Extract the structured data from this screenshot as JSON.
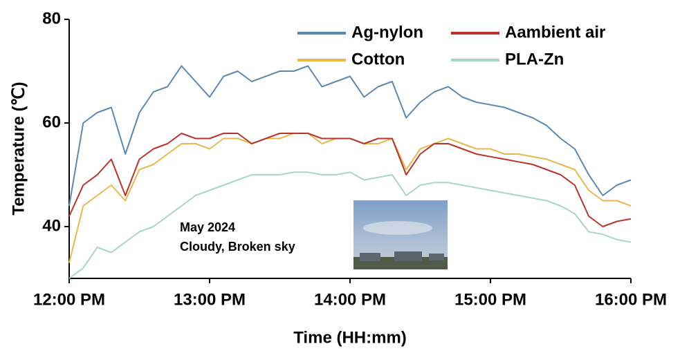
{
  "chart_data": {
    "type": "line",
    "xlabel": "Time (HH:mm)",
    "ylabel": "Temperature (℃)",
    "x": [
      0,
      6,
      12,
      18,
      24,
      30,
      36,
      42,
      48,
      54,
      60,
      66,
      72,
      78,
      84,
      90,
      96,
      102,
      108,
      114,
      120,
      126,
      132,
      138,
      144,
      150,
      156,
      162,
      168,
      174,
      180,
      186,
      192,
      198,
      204,
      210,
      216,
      222,
      228,
      234,
      240
    ],
    "xlim": [
      0,
      240
    ],
    "xticks": [
      {
        "value": 0,
        "label": "12:00 PM"
      },
      {
        "value": 60,
        "label": "13:00 PM"
      },
      {
        "value": 120,
        "label": "14:00 PM"
      },
      {
        "value": 180,
        "label": "15:00 PM"
      },
      {
        "value": 240,
        "label": "16:00 PM"
      }
    ],
    "ylim": [
      30,
      80
    ],
    "yticks": [
      40,
      60,
      80
    ],
    "series": [
      {
        "name": "Ag-nylon",
        "color": "#5a88b0",
        "values": [
          44,
          60,
          62,
          63,
          54,
          62,
          66,
          67,
          71,
          68,
          65,
          69,
          70,
          68,
          69,
          70,
          70,
          71,
          67,
          68,
          69,
          65,
          67,
          68,
          61,
          64,
          66,
          67,
          65,
          64,
          63.5,
          63,
          62,
          61,
          59.5,
          57,
          55,
          50,
          46,
          48,
          49
        ]
      },
      {
        "name": "Aambient air",
        "color": "#b8322a",
        "values": [
          42,
          48,
          50,
          53,
          46,
          53,
          55,
          56,
          58,
          57,
          57,
          58,
          58,
          56,
          57,
          58,
          58,
          58,
          57,
          57,
          57,
          56,
          57,
          57,
          50,
          54,
          56,
          56,
          55,
          54,
          53.5,
          53,
          52.5,
          52,
          51,
          50,
          48,
          42,
          40,
          41,
          41.5
        ]
      },
      {
        "name": "Cotton",
        "color": "#e9b84c",
        "values": [
          33,
          44,
          46,
          48,
          45,
          51,
          52,
          54,
          56,
          56,
          55,
          57,
          57,
          56,
          57,
          57,
          58,
          58,
          56,
          57,
          57,
          56,
          56,
          57,
          51,
          55,
          56,
          57,
          56,
          55,
          55,
          54,
          54,
          53.5,
          53,
          52,
          51,
          47,
          45,
          45,
          44
        ]
      },
      {
        "name": "PLA-Zn",
        "color": "#a9d4c6",
        "values": [
          30,
          32,
          36,
          35,
          37,
          39,
          40,
          42,
          44,
          46,
          47,
          48,
          49,
          50,
          50,
          50,
          50.5,
          50.5,
          50,
          50,
          50.5,
          49,
          49.5,
          50,
          46,
          48,
          48.5,
          48.5,
          48,
          47.5,
          47,
          46.5,
          46,
          45.5,
          45,
          44,
          42.5,
          39,
          38.5,
          37.5,
          37
        ]
      }
    ],
    "annotations": [
      "May 2024",
      "Cloudy, Broken sky"
    ]
  }
}
